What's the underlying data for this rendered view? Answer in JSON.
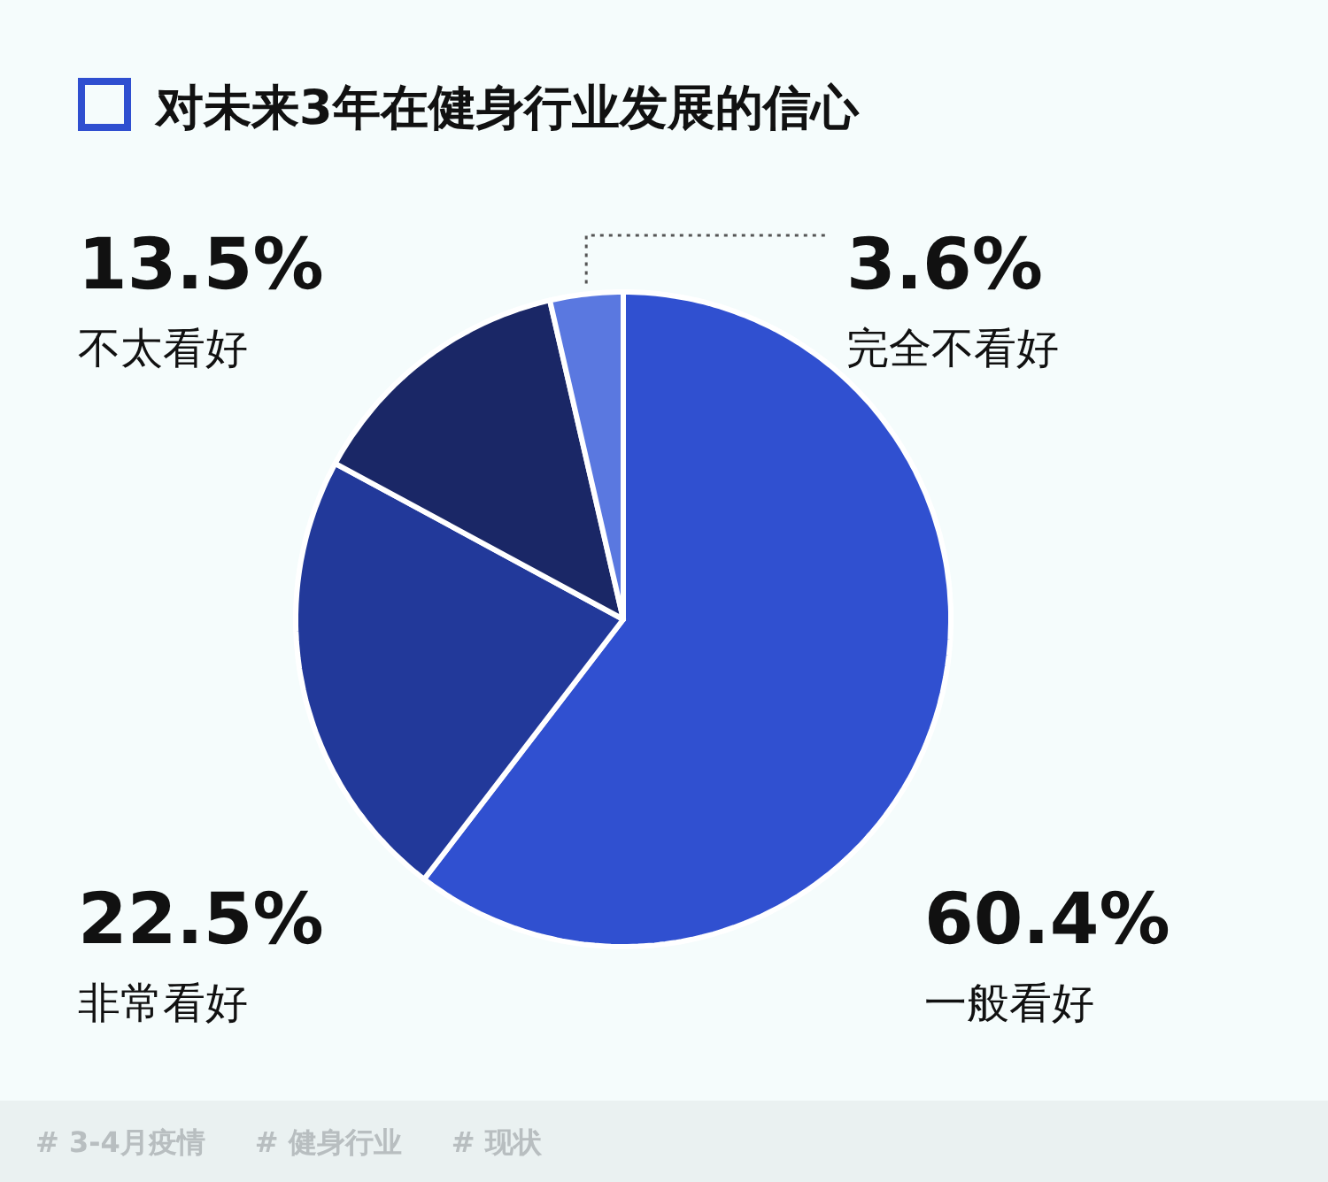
{
  "chart_data": {
    "type": "pie",
    "title": "对未来3年在健身行业发展的信心",
    "categories": [
      "一般看好",
      "非常看好",
      "不太看好",
      "完全不看好"
    ],
    "values": [
      60.4,
      22.5,
      13.5,
      3.6
    ],
    "value_labels": [
      "60.4%",
      "22.5%",
      "13.5%",
      "3.6%"
    ],
    "colors": [
      "#3050d0",
      "#22399a",
      "#1a2766",
      "#5a78e0"
    ],
    "annotations": [
      "# 3-4月疫情",
      "# 健身行业",
      "# 现状"
    ]
  }
}
